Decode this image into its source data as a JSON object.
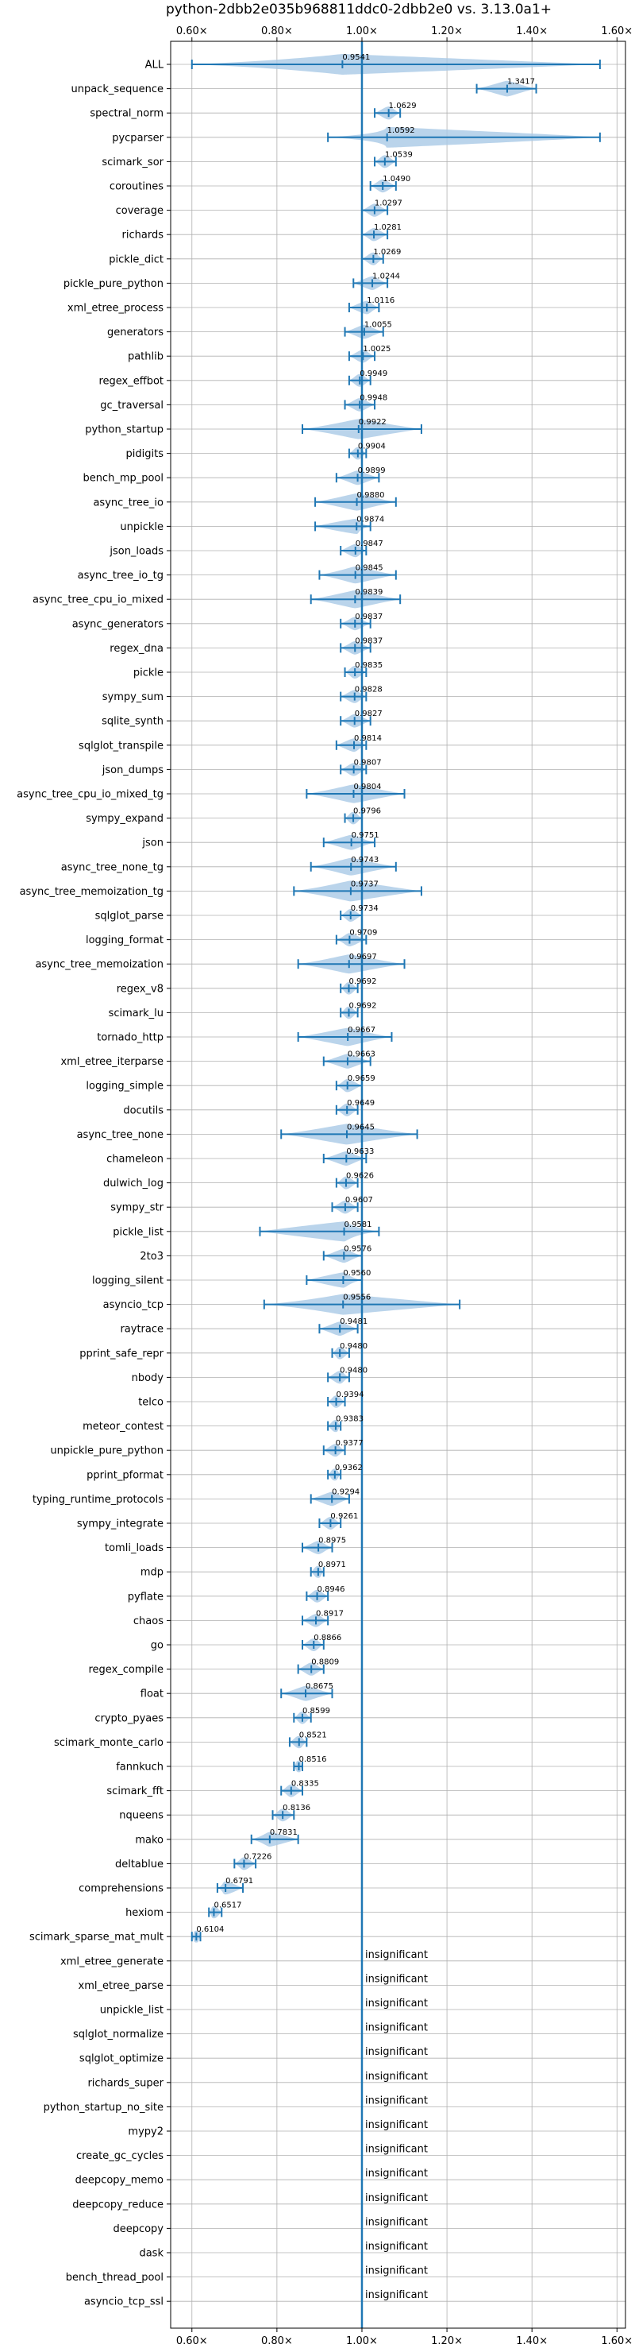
{
  "chart_data": {
    "type": "violin",
    "title": "python-2dbb2e035b968811ddc0-2dbb2e0 vs. 3.13.0a1+",
    "xlim": [
      0.55,
      1.62
    ],
    "xticks": [
      0.6,
      0.8,
      1.0,
      1.2,
      1.4,
      1.6
    ],
    "xtick_labels": [
      "0.60×",
      "0.80×",
      "1.00×",
      "1.20×",
      "1.40×",
      "1.60×"
    ],
    "grid": true,
    "reference_line": 1.0,
    "colors": {
      "body": "#a9c9e6",
      "line": "#1f77b4",
      "grid": "#b0b0b0",
      "axis": "#000000"
    },
    "insignificant_label": "insignificant",
    "benchmarks": [
      {
        "name": "ALL",
        "value": 0.9541,
        "min": 0.6,
        "max": 1.56,
        "label": "0.9541"
      },
      {
        "name": "unpack_sequence",
        "value": 1.3417,
        "min": 1.27,
        "max": 1.41,
        "label": "1.3417"
      },
      {
        "name": "spectral_norm",
        "value": 1.0629,
        "min": 1.03,
        "max": 1.09,
        "label": "1.0629"
      },
      {
        "name": "pycparser",
        "value": 1.0592,
        "min": 0.92,
        "max": 1.56,
        "label": "1.0592"
      },
      {
        "name": "scimark_sor",
        "value": 1.0539,
        "min": 1.03,
        "max": 1.08,
        "label": "1.0539"
      },
      {
        "name": "coroutines",
        "value": 1.049,
        "min": 1.02,
        "max": 1.08,
        "label": "1.0490"
      },
      {
        "name": "coverage",
        "value": 1.0297,
        "min": 1.0,
        "max": 1.06,
        "label": "1.0297"
      },
      {
        "name": "richards",
        "value": 1.0281,
        "min": 1.0,
        "max": 1.06,
        "label": "1.0281"
      },
      {
        "name": "pickle_dict",
        "value": 1.0269,
        "min": 1.0,
        "max": 1.05,
        "label": "1.0269"
      },
      {
        "name": "pickle_pure_python",
        "value": 1.0244,
        "min": 0.98,
        "max": 1.06,
        "label": "1.0244"
      },
      {
        "name": "xml_etree_process",
        "value": 1.0116,
        "min": 0.97,
        "max": 1.04,
        "label": "1.0116"
      },
      {
        "name": "generators",
        "value": 1.0055,
        "min": 0.96,
        "max": 1.05,
        "label": "1.0055"
      },
      {
        "name": "pathlib",
        "value": 1.0025,
        "min": 0.97,
        "max": 1.03,
        "label": "1.0025"
      },
      {
        "name": "regex_effbot",
        "value": 0.9949,
        "min": 0.97,
        "max": 1.02,
        "label": "0.9949"
      },
      {
        "name": "gc_traversal",
        "value": 0.9948,
        "min": 0.96,
        "max": 1.03,
        "label": "0.9948"
      },
      {
        "name": "python_startup",
        "value": 0.9922,
        "min": 0.86,
        "max": 1.14,
        "label": "0.9922"
      },
      {
        "name": "pidigits",
        "value": 0.9904,
        "min": 0.97,
        "max": 1.01,
        "label": "0.9904"
      },
      {
        "name": "bench_mp_pool",
        "value": 0.9899,
        "min": 0.94,
        "max": 1.04,
        "label": "0.9899"
      },
      {
        "name": "async_tree_io",
        "value": 0.988,
        "min": 0.89,
        "max": 1.08,
        "label": "0.9880"
      },
      {
        "name": "unpickle",
        "value": 0.9874,
        "min": 0.89,
        "max": 1.02,
        "label": "0.9874"
      },
      {
        "name": "json_loads",
        "value": 0.9847,
        "min": 0.95,
        "max": 1.01,
        "label": "0.9847"
      },
      {
        "name": "async_tree_io_tg",
        "value": 0.9845,
        "min": 0.9,
        "max": 1.08,
        "label": "0.9845"
      },
      {
        "name": "async_tree_cpu_io_mixed",
        "value": 0.9839,
        "min": 0.88,
        "max": 1.09,
        "label": "0.9839"
      },
      {
        "name": "async_generators",
        "value": 0.9837,
        "min": 0.95,
        "max": 1.02,
        "label": "0.9837"
      },
      {
        "name": "regex_dna",
        "value": 0.9837,
        "min": 0.95,
        "max": 1.02,
        "label": "0.9837"
      },
      {
        "name": "pickle",
        "value": 0.9835,
        "min": 0.96,
        "max": 1.01,
        "label": "0.9835"
      },
      {
        "name": "sympy_sum",
        "value": 0.9828,
        "min": 0.95,
        "max": 1.01,
        "label": "0.9828"
      },
      {
        "name": "sqlite_synth",
        "value": 0.9827,
        "min": 0.95,
        "max": 1.02,
        "label": "0.9827"
      },
      {
        "name": "sqlglot_transpile",
        "value": 0.9814,
        "min": 0.94,
        "max": 1.01,
        "label": "0.9814"
      },
      {
        "name": "json_dumps",
        "value": 0.9807,
        "min": 0.95,
        "max": 1.01,
        "label": "0.9807"
      },
      {
        "name": "async_tree_cpu_io_mixed_tg",
        "value": 0.9804,
        "min": 0.87,
        "max": 1.1,
        "label": "0.9804"
      },
      {
        "name": "sympy_expand",
        "value": 0.9796,
        "min": 0.96,
        "max": 1.0,
        "label": "0.9796"
      },
      {
        "name": "json",
        "value": 0.9751,
        "min": 0.91,
        "max": 1.03,
        "label": "0.9751"
      },
      {
        "name": "async_tree_none_tg",
        "value": 0.9743,
        "min": 0.88,
        "max": 1.08,
        "label": "0.9743"
      },
      {
        "name": "async_tree_memoization_tg",
        "value": 0.9737,
        "min": 0.84,
        "max": 1.14,
        "label": "0.9737"
      },
      {
        "name": "sqlglot_parse",
        "value": 0.9734,
        "min": 0.95,
        "max": 1.0,
        "label": "0.9734"
      },
      {
        "name": "logging_format",
        "value": 0.9709,
        "min": 0.94,
        "max": 1.01,
        "label": "0.9709"
      },
      {
        "name": "async_tree_memoization",
        "value": 0.9697,
        "min": 0.85,
        "max": 1.1,
        "label": "0.9697"
      },
      {
        "name": "regex_v8",
        "value": 0.9692,
        "min": 0.95,
        "max": 0.99,
        "label": "0.9692"
      },
      {
        "name": "scimark_lu",
        "value": 0.9692,
        "min": 0.95,
        "max": 0.99,
        "label": "0.9692"
      },
      {
        "name": "tornado_http",
        "value": 0.9667,
        "min": 0.85,
        "max": 1.07,
        "label": "0.9667"
      },
      {
        "name": "xml_etree_iterparse",
        "value": 0.9663,
        "min": 0.91,
        "max": 1.02,
        "label": "0.9663"
      },
      {
        "name": "logging_simple",
        "value": 0.9659,
        "min": 0.94,
        "max": 1.0,
        "label": "0.9659"
      },
      {
        "name": "docutils",
        "value": 0.9649,
        "min": 0.94,
        "max": 0.99,
        "label": "0.9649"
      },
      {
        "name": "async_tree_none",
        "value": 0.9645,
        "min": 0.81,
        "max": 1.13,
        "label": "0.9645"
      },
      {
        "name": "chameleon",
        "value": 0.9633,
        "min": 0.91,
        "max": 1.01,
        "label": "0.9633"
      },
      {
        "name": "dulwich_log",
        "value": 0.9626,
        "min": 0.94,
        "max": 0.99,
        "label": "0.9626"
      },
      {
        "name": "sympy_str",
        "value": 0.9607,
        "min": 0.93,
        "max": 0.99,
        "label": "0.9607"
      },
      {
        "name": "pickle_list",
        "value": 0.9581,
        "min": 0.76,
        "max": 1.04,
        "label": "0.9581"
      },
      {
        "name": "2to3",
        "value": 0.9576,
        "min": 0.91,
        "max": 1.0,
        "label": "0.9576"
      },
      {
        "name": "logging_silent",
        "value": 0.956,
        "min": 0.87,
        "max": 1.0,
        "label": "0.9560"
      },
      {
        "name": "asyncio_tcp",
        "value": 0.9556,
        "min": 0.77,
        "max": 1.23,
        "label": "0.9556"
      },
      {
        "name": "raytrace",
        "value": 0.9481,
        "min": 0.9,
        "max": 0.99,
        "label": "0.9481"
      },
      {
        "name": "pprint_safe_repr",
        "value": 0.948,
        "min": 0.93,
        "max": 0.97,
        "label": "0.9480"
      },
      {
        "name": "nbody",
        "value": 0.948,
        "min": 0.92,
        "max": 0.97,
        "label": "0.9480"
      },
      {
        "name": "telco",
        "value": 0.9394,
        "min": 0.92,
        "max": 0.96,
        "label": "0.9394"
      },
      {
        "name": "meteor_contest",
        "value": 0.9383,
        "min": 0.92,
        "max": 0.95,
        "label": "0.9383"
      },
      {
        "name": "unpickle_pure_python",
        "value": 0.9377,
        "min": 0.91,
        "max": 0.96,
        "label": "0.9377"
      },
      {
        "name": "pprint_pformat",
        "value": 0.9362,
        "min": 0.92,
        "max": 0.95,
        "label": "0.9362"
      },
      {
        "name": "typing_runtime_protocols",
        "value": 0.9294,
        "min": 0.88,
        "max": 0.97,
        "label": "0.9294"
      },
      {
        "name": "sympy_integrate",
        "value": 0.9261,
        "min": 0.9,
        "max": 0.95,
        "label": "0.9261"
      },
      {
        "name": "tomli_loads",
        "value": 0.8975,
        "min": 0.86,
        "max": 0.93,
        "label": "0.8975"
      },
      {
        "name": "mdp",
        "value": 0.8971,
        "min": 0.88,
        "max": 0.91,
        "label": "0.8971"
      },
      {
        "name": "pyflate",
        "value": 0.8946,
        "min": 0.87,
        "max": 0.92,
        "label": "0.8946"
      },
      {
        "name": "chaos",
        "value": 0.8917,
        "min": 0.86,
        "max": 0.92,
        "label": "0.8917"
      },
      {
        "name": "go",
        "value": 0.8866,
        "min": 0.86,
        "max": 0.91,
        "label": "0.8866"
      },
      {
        "name": "regex_compile",
        "value": 0.8809,
        "min": 0.85,
        "max": 0.91,
        "label": "0.8809"
      },
      {
        "name": "float",
        "value": 0.8675,
        "min": 0.81,
        "max": 0.93,
        "label": "0.8675"
      },
      {
        "name": "crypto_pyaes",
        "value": 0.8599,
        "min": 0.84,
        "max": 0.88,
        "label": "0.8599"
      },
      {
        "name": "scimark_monte_carlo",
        "value": 0.8521,
        "min": 0.83,
        "max": 0.87,
        "label": "0.8521"
      },
      {
        "name": "fannkuch",
        "value": 0.8516,
        "min": 0.84,
        "max": 0.86,
        "label": "0.8516"
      },
      {
        "name": "scimark_fft",
        "value": 0.8335,
        "min": 0.81,
        "max": 0.86,
        "label": "0.8335"
      },
      {
        "name": "nqueens",
        "value": 0.8136,
        "min": 0.79,
        "max": 0.84,
        "label": "0.8136"
      },
      {
        "name": "mako",
        "value": 0.7831,
        "min": 0.74,
        "max": 0.85,
        "label": "0.7831"
      },
      {
        "name": "deltablue",
        "value": 0.7226,
        "min": 0.7,
        "max": 0.75,
        "label": "0.7226"
      },
      {
        "name": "comprehensions",
        "value": 0.6791,
        "min": 0.66,
        "max": 0.72,
        "label": "0.6791"
      },
      {
        "name": "hexiom",
        "value": 0.6517,
        "min": 0.64,
        "max": 0.67,
        "label": "0.6517"
      },
      {
        "name": "scimark_sparse_mat_mult",
        "value": 0.6104,
        "min": 0.6,
        "max": 0.62,
        "label": "0.6104"
      },
      {
        "name": "xml_etree_generate",
        "insignificant": true
      },
      {
        "name": "xml_etree_parse",
        "insignificant": true
      },
      {
        "name": "unpickle_list",
        "insignificant": true
      },
      {
        "name": "sqlglot_normalize",
        "insignificant": true
      },
      {
        "name": "sqlglot_optimize",
        "insignificant": true
      },
      {
        "name": "richards_super",
        "insignificant": true
      },
      {
        "name": "python_startup_no_site",
        "insignificant": true
      },
      {
        "name": "mypy2",
        "insignificant": true
      },
      {
        "name": "create_gc_cycles",
        "insignificant": true
      },
      {
        "name": "deepcopy_memo",
        "insignificant": true
      },
      {
        "name": "deepcopy_reduce",
        "insignificant": true
      },
      {
        "name": "deepcopy",
        "insignificant": true
      },
      {
        "name": "dask",
        "insignificant": true
      },
      {
        "name": "bench_thread_pool",
        "insignificant": true
      },
      {
        "name": "asyncio_tcp_ssl",
        "insignificant": true
      }
    ]
  }
}
